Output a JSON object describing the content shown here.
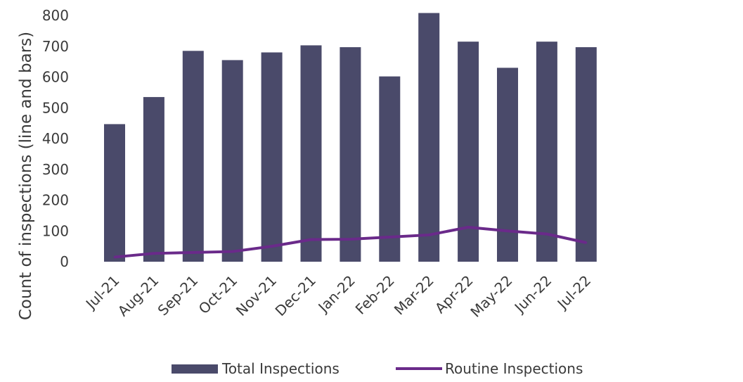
{
  "chart_data": {
    "type": "bar",
    "title": "",
    "xlabel": "",
    "ylabel": "Count of inspections (line and bars)",
    "ylim": [
      0,
      800
    ],
    "yticks": [
      0,
      100,
      200,
      300,
      400,
      500,
      600,
      700,
      800
    ],
    "grid": false,
    "legend_position": "bottom",
    "categories": [
      "Jul-21",
      "Aug-21",
      "Sep-21",
      "Oct-21",
      "Nov-21",
      "Dec-21",
      "Jan-22",
      "Feb-22",
      "Mar-22",
      "Apr-22",
      "May-22",
      "Jun-22",
      "Jul-22"
    ],
    "series": [
      {
        "name": "Total Inspections",
        "type": "bar",
        "color": "#4a4a6a",
        "values": [
          447,
          535,
          685,
          655,
          680,
          703,
          697,
          602,
          808,
          715,
          630,
          715,
          697
        ]
      },
      {
        "name": "Routine Inspections",
        "type": "line",
        "color": "#6a2a8a",
        "values": [
          15,
          27,
          30,
          33,
          50,
          72,
          73,
          80,
          87,
          112,
          100,
          90,
          62
        ]
      }
    ]
  }
}
